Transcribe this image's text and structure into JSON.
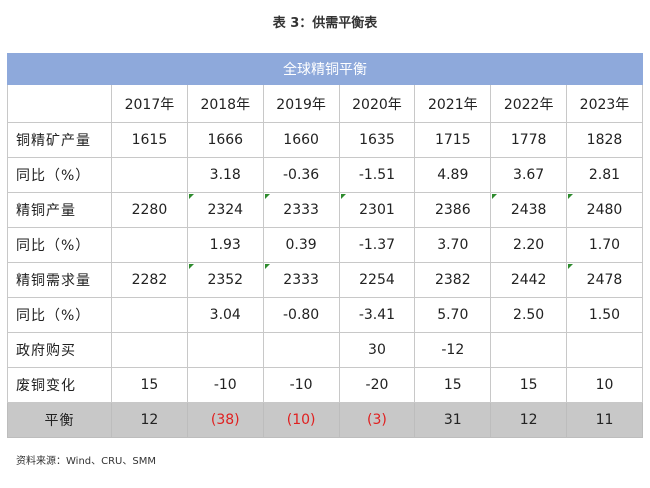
{
  "caption": "表 3：供需平衡表",
  "table": {
    "header": "全球精铜平衡",
    "years": [
      "2017年",
      "2018年",
      "2019年",
      "2020年",
      "2021年",
      "2022年",
      "2023年"
    ],
    "rows": [
      {
        "label": "铜精矿产量",
        "values": [
          "1615",
          "1666",
          "1660",
          "1635",
          "1715",
          "1778",
          "1828"
        ]
      },
      {
        "label": "同比（%）",
        "values": [
          "",
          "3.18",
          "-0.36",
          "-1.51",
          "4.89",
          "3.67",
          "2.81"
        ]
      },
      {
        "label": "精铜产量",
        "values": [
          "2280",
          "2324",
          "2333",
          "2301",
          "2386",
          "2438",
          "2480"
        ]
      },
      {
        "label": "同比（%）",
        "values": [
          "",
          "1.93",
          "0.39",
          "-1.37",
          "3.70",
          "2.20",
          "1.70"
        ]
      },
      {
        "label": "精铜需求量",
        "values": [
          "2282",
          "2352",
          "2333",
          "2254",
          "2382",
          "2442",
          "2478"
        ]
      },
      {
        "label": "同比（%）",
        "values": [
          "",
          "3.04",
          "-0.80",
          "-3.41",
          "5.70",
          "2.50",
          "1.50"
        ]
      },
      {
        "label": "政府购买",
        "values": [
          "",
          "",
          "",
          "30",
          "-12",
          "",
          ""
        ]
      },
      {
        "label": "废铜变化",
        "values": [
          "15",
          "-10",
          "-10",
          "-20",
          "15",
          "15",
          "10"
        ]
      },
      {
        "label": "平衡",
        "values": [
          "12",
          "(38)",
          "(10)",
          "(3)",
          "31",
          "12",
          "11"
        ]
      }
    ]
  },
  "source": "资料来源：Wind、CRU、SMM",
  "colors": {
    "header_bg": "#8ea9db",
    "balance_bg": "#c8c8c8",
    "negative": "#e02020",
    "flag": "#2e8b2e"
  }
}
